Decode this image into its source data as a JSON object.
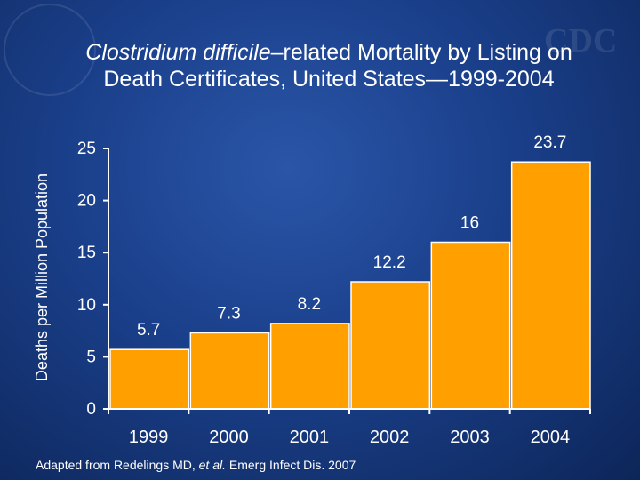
{
  "title_italic": "Clostridium difficile",
  "title_rest_line1": "–related Mortality by Listing on",
  "title_line2": "Death Certificates, United States—1999-2004",
  "footnote_prefix": "Adapted from Redelings MD, ",
  "footnote_italic": "et al.",
  "footnote_suffix": " Emerg Infect Dis. 2007",
  "watermark_logo": "CDC",
  "colors": {
    "bar": "#ff9f00",
    "bar_edge": "#ffffff",
    "axis": "#ffffff",
    "background": "#1a3f8a"
  },
  "chart_data": {
    "type": "bar",
    "categories": [
      "1999",
      "2000",
      "2001",
      "2002",
      "2003",
      "2004"
    ],
    "values": [
      5.7,
      7.3,
      8.2,
      12.2,
      16,
      23.7
    ],
    "value_labels": [
      "5.7",
      "7.3",
      "8.2",
      "12.2",
      "16",
      "23.7"
    ],
    "ylabel": "Deaths per Million Population",
    "ylim": [
      0,
      25
    ],
    "yticks": [
      0,
      5,
      10,
      15,
      20,
      25
    ],
    "grid": false,
    "legend": "none"
  }
}
